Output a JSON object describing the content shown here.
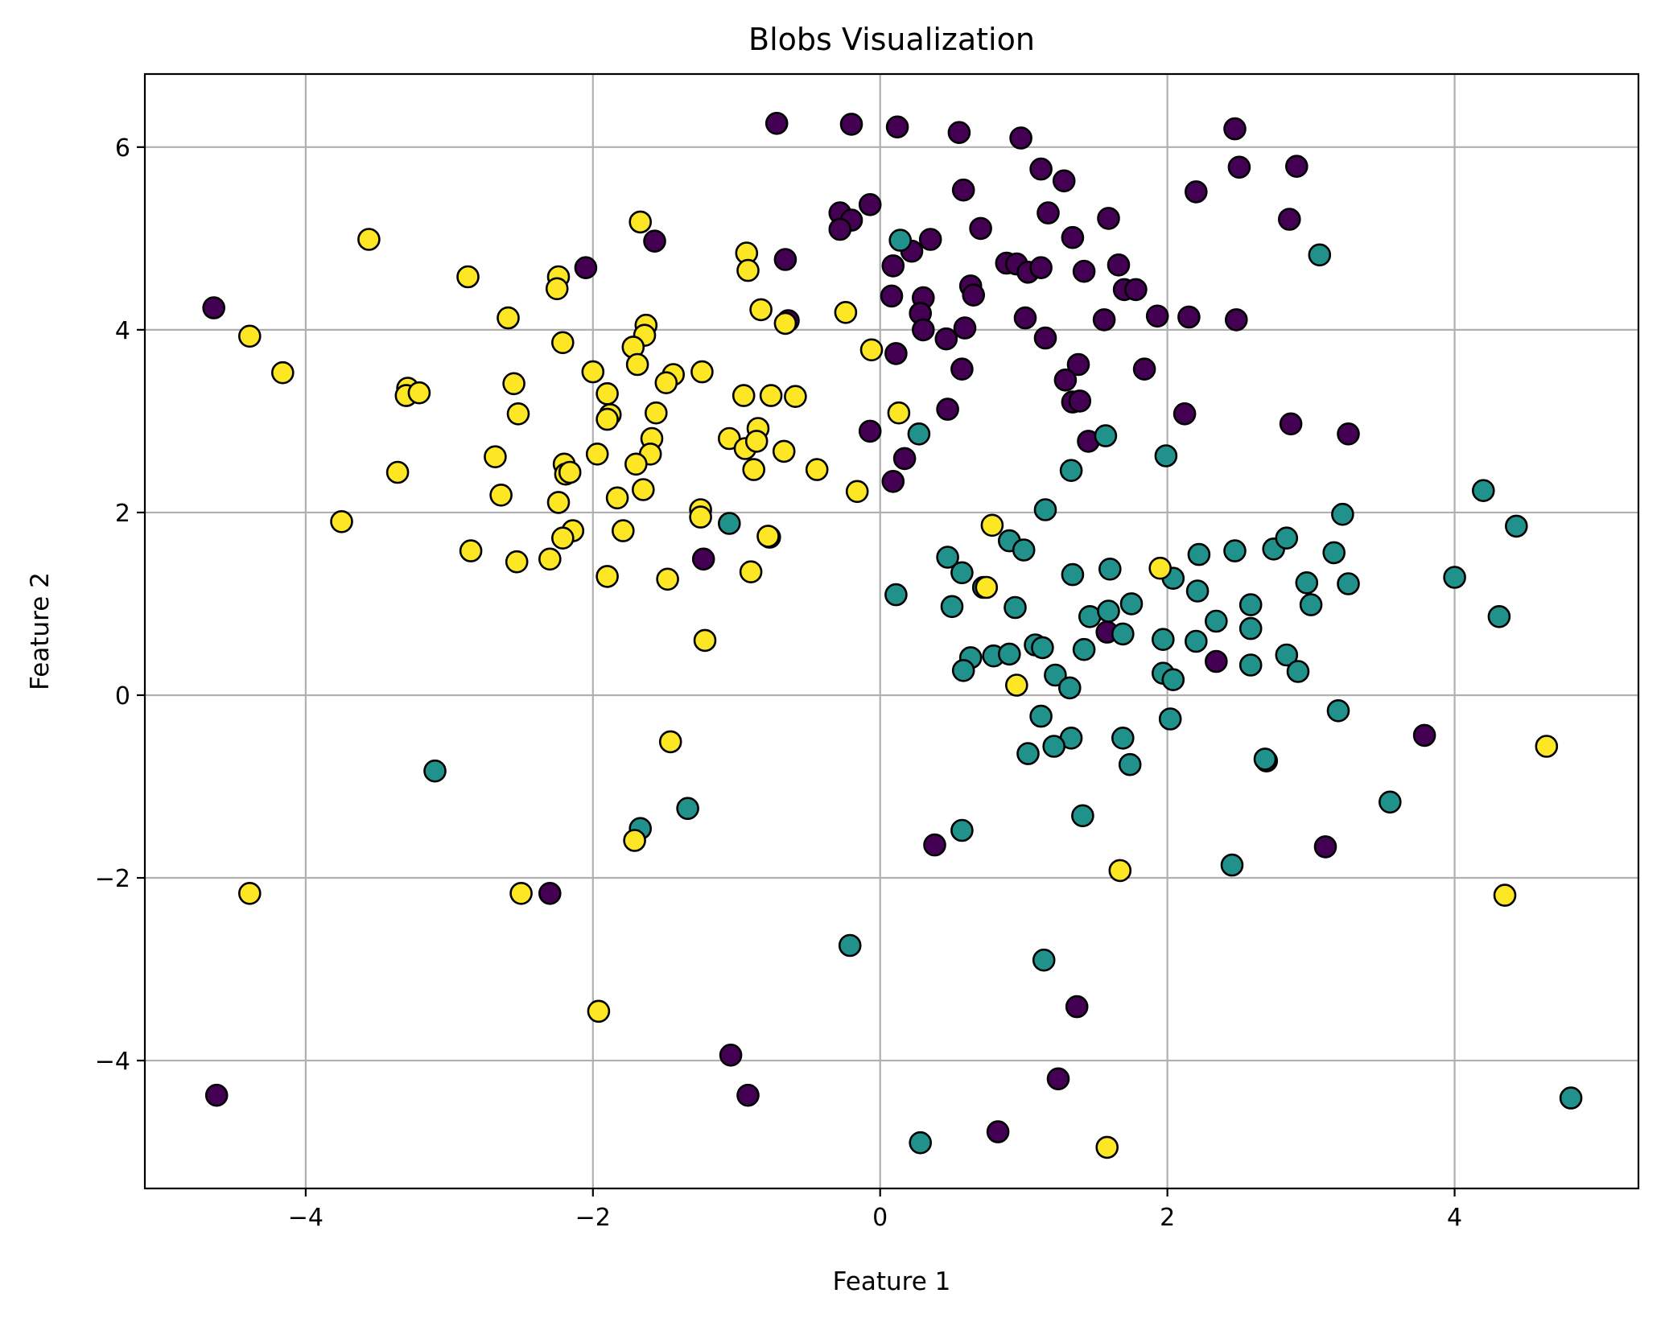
{
  "chart_data": {
    "type": "scatter",
    "title": "Blobs Visualization",
    "xlabel": "Feature 1",
    "ylabel": "Feature 2",
    "xlim": [
      -5.12,
      5.28
    ],
    "ylim": [
      -5.4,
      6.8
    ],
    "xticks": [
      -4,
      -2,
      0,
      2,
      4
    ],
    "yticks": [
      -4,
      -2,
      0,
      2,
      4,
      6
    ],
    "xtick_labels": [
      "−4",
      "−2",
      "0",
      "2",
      "4"
    ],
    "ytick_labels": [
      "−4",
      "−2",
      "0",
      "2",
      "4",
      "6"
    ],
    "grid": true,
    "legend": false,
    "series": [
      {
        "color": "#440154",
        "points": [
          [
            -0.72,
            6.26
          ],
          [
            -0.2,
            6.25
          ],
          [
            0.12,
            6.22
          ],
          [
            0.55,
            6.16
          ],
          [
            0.98,
            6.1
          ],
          [
            2.47,
            6.2
          ],
          [
            1.12,
            5.76
          ],
          [
            1.28,
            5.63
          ],
          [
            2.5,
            5.78
          ],
          [
            2.9,
            5.79
          ],
          [
            0.58,
            5.53
          ],
          [
            2.2,
            5.51
          ],
          [
            -0.28,
            5.28
          ],
          [
            -0.07,
            5.37
          ],
          [
            1.17,
            5.28
          ],
          [
            1.59,
            5.22
          ],
          [
            2.85,
            5.21
          ],
          [
            -0.2,
            5.2
          ],
          [
            -0.28,
            5.1
          ],
          [
            0.7,
            5.11
          ],
          [
            -1.57,
            4.97
          ],
          [
            0.35,
            4.99
          ],
          [
            1.34,
            5.01
          ],
          [
            0.22,
            4.86
          ],
          [
            -2.05,
            4.68
          ],
          [
            -0.66,
            4.77
          ],
          [
            0.09,
            4.7
          ],
          [
            0.88,
            4.73
          ],
          [
            0.95,
            4.72
          ],
          [
            1.03,
            4.63
          ],
          [
            1.12,
            4.68
          ],
          [
            1.42,
            4.64
          ],
          [
            1.66,
            4.71
          ],
          [
            1.7,
            4.44
          ],
          [
            1.78,
            4.44
          ],
          [
            0.63,
            4.48
          ],
          [
            0.65,
            4.38
          ],
          [
            0.08,
            4.37
          ],
          [
            0.3,
            4.35
          ],
          [
            0.28,
            4.18
          ],
          [
            0.3,
            4.0
          ],
          [
            0.46,
            3.9
          ],
          [
            0.59,
            4.02
          ],
          [
            1.01,
            4.13
          ],
          [
            1.56,
            4.11
          ],
          [
            1.93,
            4.15
          ],
          [
            2.15,
            4.14
          ],
          [
            2.48,
            4.11
          ],
          [
            -0.64,
            4.1
          ],
          [
            1.15,
            3.91
          ],
          [
            0.11,
            3.74
          ],
          [
            0.57,
            3.57
          ],
          [
            1.38,
            3.62
          ],
          [
            1.84,
            3.57
          ],
          [
            1.29,
            3.45
          ],
          [
            1.34,
            3.21
          ],
          [
            1.39,
            3.22
          ],
          [
            0.47,
            3.13
          ],
          [
            2.12,
            3.08
          ],
          [
            2.86,
            2.97
          ],
          [
            3.26,
            2.86
          ],
          [
            -0.07,
            2.89
          ],
          [
            1.45,
            2.78
          ],
          [
            0.17,
            2.59
          ],
          [
            0.09,
            2.34
          ],
          [
            -1.23,
            1.49
          ],
          [
            1.58,
            0.69
          ],
          [
            2.34,
            0.37
          ],
          [
            3.79,
            -0.44
          ],
          [
            2.69,
            -0.72
          ],
          [
            0.38,
            -1.64
          ],
          [
            3.1,
            -1.66
          ],
          [
            -2.3,
            -2.17
          ],
          [
            1.37,
            -3.41
          ],
          [
            -1.04,
            -3.94
          ],
          [
            -0.92,
            -4.38
          ],
          [
            -4.62,
            -4.38
          ],
          [
            1.24,
            -4.2
          ],
          [
            0.82,
            -4.78
          ],
          [
            -4.64,
            4.24
          ]
        ]
      },
      {
        "color": "#21918c",
        "points": [
          [
            0.14,
            4.98
          ],
          [
            3.06,
            4.82
          ],
          [
            0.27,
            2.86
          ],
          [
            1.57,
            2.84
          ],
          [
            1.99,
            2.62
          ],
          [
            1.33,
            2.46
          ],
          [
            4.2,
            2.24
          ],
          [
            1.15,
            2.03
          ],
          [
            3.22,
            1.98
          ],
          [
            4.43,
            1.85
          ],
          [
            -1.05,
            1.88
          ],
          [
            0.9,
            1.69
          ],
          [
            1.0,
            1.59
          ],
          [
            2.47,
            1.58
          ],
          [
            2.74,
            1.6
          ],
          [
            2.83,
            1.72
          ],
          [
            3.16,
            1.56
          ],
          [
            2.22,
            1.54
          ],
          [
            0.47,
            1.51
          ],
          [
            0.57,
            1.34
          ],
          [
            1.34,
            1.32
          ],
          [
            1.6,
            1.38
          ],
          [
            2.04,
            1.28
          ],
          [
            2.97,
            1.23
          ],
          [
            3.26,
            1.22
          ],
          [
            4.0,
            1.29
          ],
          [
            2.21,
            1.14
          ],
          [
            0.11,
            1.1
          ],
          [
            0.72,
            1.18
          ],
          [
            1.75,
            1.0
          ],
          [
            0.94,
            0.96
          ],
          [
            2.58,
            0.99
          ],
          [
            3.0,
            0.99
          ],
          [
            1.46,
            0.86
          ],
          [
            1.59,
            0.92
          ],
          [
            2.34,
            0.81
          ],
          [
            4.31,
            0.86
          ],
          [
            2.58,
            0.73
          ],
          [
            0.5,
            0.97
          ],
          [
            1.69,
            0.67
          ],
          [
            1.97,
            0.61
          ],
          [
            2.2,
            0.59
          ],
          [
            1.42,
            0.5
          ],
          [
            1.08,
            0.55
          ],
          [
            1.13,
            0.52
          ],
          [
            0.79,
            0.43
          ],
          [
            0.9,
            0.45
          ],
          [
            0.63,
            0.41
          ],
          [
            2.83,
            0.44
          ],
          [
            0.58,
            0.27
          ],
          [
            1.22,
            0.22
          ],
          [
            1.97,
            0.24
          ],
          [
            2.04,
            0.17
          ],
          [
            2.58,
            0.33
          ],
          [
            2.91,
            0.26
          ],
          [
            1.32,
            0.08
          ],
          [
            3.19,
            -0.17
          ],
          [
            1.12,
            -0.23
          ],
          [
            2.02,
            -0.26
          ],
          [
            1.33,
            -0.47
          ],
          [
            1.21,
            -0.56
          ],
          [
            1.69,
            -0.47
          ],
          [
            1.03,
            -0.64
          ],
          [
            1.74,
            -0.76
          ],
          [
            2.68,
            -0.7
          ],
          [
            -3.1,
            -0.83
          ],
          [
            3.55,
            -1.17
          ],
          [
            -1.34,
            -1.24
          ],
          [
            1.41,
            -1.32
          ],
          [
            -1.67,
            -1.46
          ],
          [
            0.57,
            -1.48
          ],
          [
            2.45,
            -1.86
          ],
          [
            1.14,
            -2.9
          ],
          [
            -0.21,
            -2.74
          ],
          [
            4.81,
            -4.41
          ],
          [
            0.28,
            -4.9
          ]
        ]
      },
      {
        "color": "#fde725",
        "points": [
          [
            -1.67,
            5.18
          ],
          [
            -3.56,
            4.99
          ],
          [
            -0.93,
            4.84
          ],
          [
            -0.92,
            4.65
          ],
          [
            -2.87,
            4.58
          ],
          [
            -2.24,
            4.58
          ],
          [
            -2.25,
            4.45
          ],
          [
            -0.83,
            4.22
          ],
          [
            -0.24,
            4.19
          ],
          [
            -2.59,
            4.13
          ],
          [
            -1.63,
            4.05
          ],
          [
            -0.66,
            4.07
          ],
          [
            -4.39,
            3.93
          ],
          [
            -1.64,
            3.94
          ],
          [
            -1.72,
            3.81
          ],
          [
            -2.21,
            3.86
          ],
          [
            -0.06,
            3.78
          ],
          [
            -1.69,
            3.62
          ],
          [
            -4.16,
            3.53
          ],
          [
            -2.0,
            3.54
          ],
          [
            -1.44,
            3.51
          ],
          [
            -1.24,
            3.54
          ],
          [
            -3.29,
            3.36
          ],
          [
            -3.3,
            3.28
          ],
          [
            -3.21,
            3.31
          ],
          [
            -1.49,
            3.42
          ],
          [
            -2.55,
            3.41
          ],
          [
            -0.95,
            3.28
          ],
          [
            -0.76,
            3.28
          ],
          [
            -0.59,
            3.27
          ],
          [
            -1.9,
            3.3
          ],
          [
            -2.52,
            3.08
          ],
          [
            -1.56,
            3.09
          ],
          [
            -1.88,
            3.07
          ],
          [
            -1.9,
            3.02
          ],
          [
            0.13,
            3.09
          ],
          [
            -0.85,
            2.92
          ],
          [
            -1.59,
            2.81
          ],
          [
            -1.05,
            2.81
          ],
          [
            -0.94,
            2.7
          ],
          [
            -0.86,
            2.78
          ],
          [
            -0.67,
            2.67
          ],
          [
            -1.6,
            2.64
          ],
          [
            -1.97,
            2.64
          ],
          [
            -2.68,
            2.61
          ],
          [
            -2.2,
            2.53
          ],
          [
            -1.7,
            2.53
          ],
          [
            -2.19,
            2.42
          ],
          [
            -2.16,
            2.44
          ],
          [
            -3.36,
            2.44
          ],
          [
            -0.88,
            2.47
          ],
          [
            -0.44,
            2.47
          ],
          [
            -1.65,
            2.25
          ],
          [
            -2.64,
            2.19
          ],
          [
            -1.83,
            2.16
          ],
          [
            -2.24,
            2.11
          ],
          [
            -0.16,
            2.23
          ],
          [
            -1.25,
            2.03
          ],
          [
            -1.25,
            1.95
          ],
          [
            -3.75,
            1.9
          ],
          [
            0.78,
            1.86
          ],
          [
            -1.79,
            1.8
          ],
          [
            -2.14,
            1.8
          ],
          [
            -2.21,
            1.72
          ],
          [
            -0.77,
            1.73
          ],
          [
            -0.78,
            1.74
          ],
          [
            -2.85,
            1.58
          ],
          [
            -2.3,
            1.49
          ],
          [
            -2.53,
            1.46
          ],
          [
            -1.9,
            1.3
          ],
          [
            -0.9,
            1.35
          ],
          [
            -1.48,
            1.27
          ],
          [
            0.74,
            1.18
          ],
          [
            1.95,
            1.39
          ],
          [
            -1.22,
            0.6
          ],
          [
            0.95,
            0.11
          ],
          [
            4.64,
            -0.56
          ],
          [
            -1.46,
            -0.51
          ],
          [
            -1.71,
            -1.59
          ],
          [
            1.67,
            -1.92
          ],
          [
            -4.39,
            -2.17
          ],
          [
            -2.5,
            -2.17
          ],
          [
            4.35,
            -2.19
          ],
          [
            -1.96,
            -3.46
          ],
          [
            1.58,
            -4.95
          ]
        ]
      }
    ]
  }
}
